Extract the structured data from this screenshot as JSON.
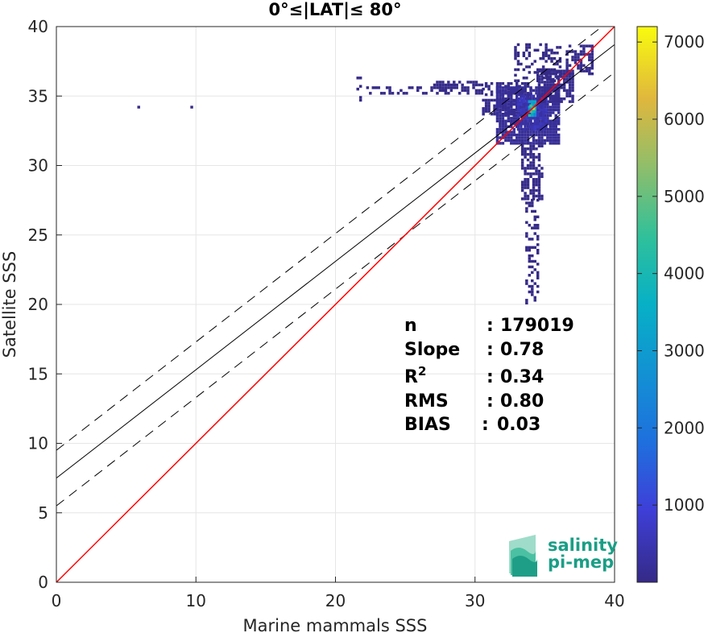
{
  "chart_data": {
    "type": "heatmap",
    "title": "0°≤|LAT|≤ 80°",
    "xlabel": "Marine mammals SSS",
    "ylabel": "Satellite SSS",
    "xlim": [
      0,
      40
    ],
    "ylim": [
      0,
      40
    ],
    "xticks": [
      0,
      10,
      20,
      30,
      40
    ],
    "yticks": [
      0,
      5,
      10,
      15,
      20,
      25,
      30,
      35,
      40
    ],
    "grid": true,
    "lines": {
      "identity": {
        "intercept": 0,
        "slope": 1,
        "color": "#ff0000"
      },
      "fit": {
        "intercept": 7.5,
        "slope": 0.78,
        "color": "#000000"
      },
      "fit_band_offset": 2.0
    },
    "stats": [
      {
        "label": "n",
        "sep": ":",
        "value": "179019"
      },
      {
        "label": "Slope",
        "sep": ":",
        "value": "0.78"
      },
      {
        "label": "R",
        "sup": "2",
        "sep": ":",
        "value": "0.34"
      },
      {
        "label": "RMS",
        "sep": ":",
        "value": "0.80"
      },
      {
        "label": "BIAS",
        "sep": ":",
        "value": "0.03"
      }
    ],
    "colorbar": {
      "min": 0,
      "max": 7200,
      "ticks": [
        1000,
        2000,
        3000,
        4000,
        5000,
        6000,
        7000
      ],
      "colormap": "parula"
    },
    "density_clusters": [
      {
        "x": [
          5.8,
          5.8
        ],
        "y": [
          34.1,
          34.1
        ],
        "level": 10
      },
      {
        "x": [
          9.6,
          9.6
        ],
        "y": [
          34.1,
          34.1
        ],
        "level": 10
      },
      {
        "x": [
          21.5,
          21.8
        ],
        "y": [
          34.6,
          36.2
        ],
        "level": 15
      },
      {
        "x": [
          22.0,
          28.0
        ],
        "y": [
          35.1,
          35.5
        ],
        "level": 10
      },
      {
        "x": [
          27.0,
          30.5
        ],
        "y": [
          35.1,
          35.9
        ],
        "level": 30
      },
      {
        "x": [
          30.5,
          34.0
        ],
        "y": [
          35.0,
          35.8
        ],
        "level": 60
      },
      {
        "x": [
          30.5,
          35.0
        ],
        "y": [
          33.6,
          34.6
        ],
        "level": 80
      },
      {
        "x": [
          31.5,
          36.0
        ],
        "y": [
          31.5,
          35.5
        ],
        "level": 250
      },
      {
        "x": [
          33.0,
          35.0
        ],
        "y": [
          32.5,
          35.0
        ],
        "level": 700
      },
      {
        "x": [
          33.8,
          34.2
        ],
        "y": [
          33.5,
          34.5
        ],
        "level": 4500
      },
      {
        "x": [
          33.9,
          34.1
        ],
        "y": [
          33.8,
          34.2
        ],
        "level": 7000
      },
      {
        "x": [
          33.3,
          34.7
        ],
        "y": [
          27.5,
          31.5
        ],
        "level": 40
      },
      {
        "x": [
          33.6,
          34.4
        ],
        "y": [
          23.0,
          27.5
        ],
        "level": 15
      },
      {
        "x": [
          33.6,
          34.4
        ],
        "y": [
          20.0,
          23.0
        ],
        "level": 8
      },
      {
        "x": [
          34.5,
          37.0
        ],
        "y": [
          34.5,
          36.8
        ],
        "level": 120
      },
      {
        "x": [
          36.5,
          38.4
        ],
        "y": [
          36.5,
          38.5
        ],
        "level": 80
      },
      {
        "x": [
          32.8,
          36.0
        ],
        "y": [
          36.0,
          38.6
        ],
        "level": 5
      }
    ],
    "logo": {
      "line1": "salinity",
      "line2": "pi-mep"
    }
  }
}
